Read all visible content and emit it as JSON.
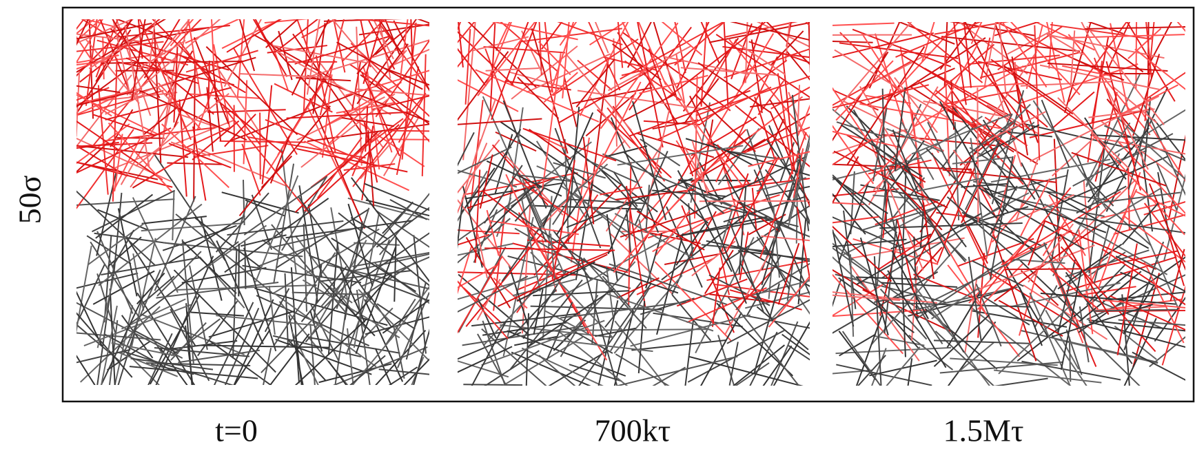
{
  "y_label": "50σ",
  "panels": [
    {
      "label": "t=0"
    },
    {
      "label": "700kτ"
    },
    {
      "label": "1.5Mτ"
    }
  ]
}
